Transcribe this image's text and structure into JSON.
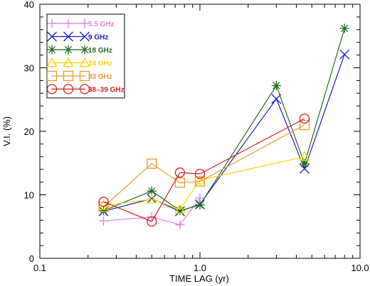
{
  "chart_data": {
    "type": "line",
    "xlabel": "TIME  LAG  (yr)",
    "ylabel": "V.I.  (%)",
    "xscale": "log",
    "xlim": [
      0.1,
      10.0
    ],
    "ylim": [
      0,
      40
    ],
    "xticks": [
      0.1,
      1.0,
      10.0
    ],
    "xtick_labels": [
      "0.1",
      "1.0",
      "10.0"
    ],
    "yticks": [
      0,
      10,
      20,
      30,
      40
    ],
    "ytick_labels": [
      "0",
      "10",
      "20",
      "30",
      "40"
    ],
    "grid": false,
    "legend_position": "top-left",
    "series": [
      {
        "name": "5.5 GHz",
        "color": "#e07ee0",
        "marker": "plus",
        "x": [
          0.25,
          0.5,
          0.75,
          1.0
        ],
        "y": [
          5.9,
          6.5,
          5.3,
          9.5
        ]
      },
      {
        "name": "9 GHz",
        "color": "#1a1acc",
        "marker": "x",
        "x": [
          0.25,
          0.5,
          0.75,
          1.0,
          3.0,
          4.5,
          8.0
        ],
        "y": [
          7.4,
          9.4,
          7.4,
          8.5,
          25.1,
          14.1,
          32.1
        ]
      },
      {
        "name": "18 GHz",
        "color": "#1f6e1f",
        "marker": "star",
        "x": [
          0.25,
          0.5,
          0.75,
          1.0,
          3.0,
          4.5,
          8.0
        ],
        "y": [
          7.5,
          10.6,
          7.5,
          8.4,
          27.2,
          14.9,
          36.2
        ]
      },
      {
        "name": "24 GHz",
        "color": "#f5d800",
        "marker": "triangle",
        "x": [
          0.25,
          0.5,
          0.75,
          1.0,
          4.5
        ],
        "y": [
          8.3,
          9.3,
          7.7,
          12.3,
          16.0
        ]
      },
      {
        "name": "33 GHz",
        "color": "#e89a30",
        "marker": "square",
        "x": [
          0.25,
          0.5,
          0.75,
          1.0,
          4.5
        ],
        "y": [
          8.1,
          14.9,
          11.9,
          12.1,
          21.0
        ]
      },
      {
        "name": "38–39 GHz",
        "color": "#d42020",
        "marker": "circle",
        "x": [
          0.25,
          0.5,
          0.75,
          1.0,
          4.5
        ],
        "y": [
          8.9,
          5.8,
          13.5,
          13.3,
          22.0
        ]
      }
    ]
  }
}
